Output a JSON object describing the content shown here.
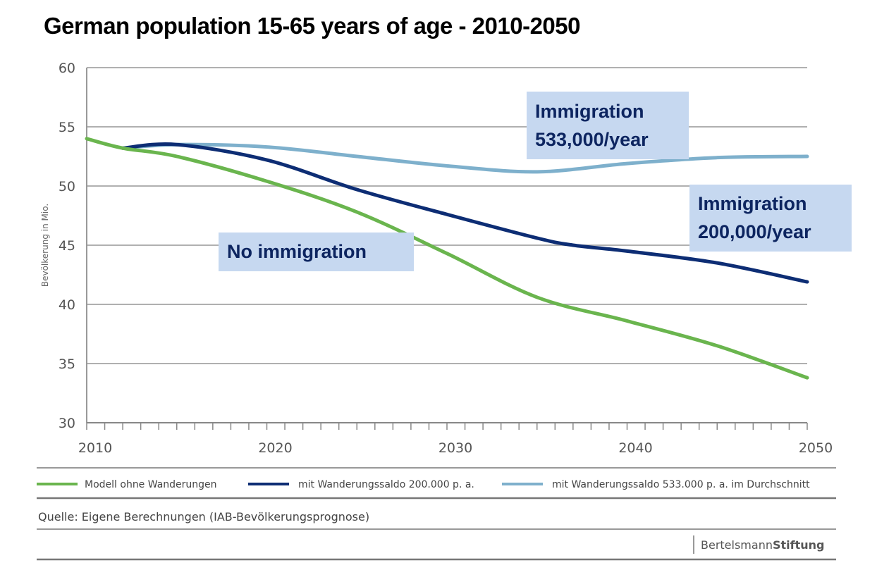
{
  "title": "German population 15-65 years of age - 2010-2050",
  "chart_data": {
    "type": "line",
    "title": "German population 15-65 years of age - 2010-2050",
    "xlabel": "",
    "ylabel": "Bevölkerung in Mio.",
    "xlim": [
      2010,
      2050
    ],
    "ylim": [
      30,
      60
    ],
    "x_ticks": [
      2010,
      2020,
      2030,
      2040,
      2050
    ],
    "y_ticks": [
      30,
      35,
      40,
      45,
      50,
      55,
      60
    ],
    "x_minor_tick_step": 1,
    "grid": "horizontal",
    "legend_position": "bottom",
    "series": [
      {
        "name": "Modell ohne Wanderungen",
        "color": "#6ab54e",
        "x": [
          2010,
          2012,
          2015,
          2020,
          2025,
          2030,
          2035,
          2040,
          2045,
          2050
        ],
        "values": [
          54.0,
          53.2,
          52.5,
          50.4,
          47.8,
          44.3,
          40.6,
          38.6,
          36.5,
          33.8
        ]
      },
      {
        "name": "mit Wanderungssaldo 200.000 p. a.",
        "color": "#0d2d74",
        "x": [
          2012,
          2015,
          2020,
          2025,
          2030,
          2035,
          2037,
          2040,
          2045,
          2050
        ],
        "values": [
          53.2,
          53.5,
          52.2,
          49.7,
          47.6,
          45.6,
          45.0,
          44.5,
          43.5,
          41.9
        ]
      },
      {
        "name": "mit Wanderungssaldo 533.000 p. a. im Durchschnitt",
        "color": "#7eb0cc",
        "x": [
          2012,
          2015,
          2020,
          2025,
          2030,
          2035,
          2040,
          2045,
          2050
        ],
        "values": [
          53.2,
          53.5,
          53.3,
          52.5,
          51.7,
          51.2,
          51.9,
          52.4,
          52.5
        ]
      }
    ],
    "annotations": [
      {
        "text_lines": [
          "Immigration",
          "533,000/year"
        ],
        "series": 2
      },
      {
        "text_lines": [
          "Immigration",
          "200,000/year"
        ],
        "series": 1
      },
      {
        "text_lines": [
          "No immigration"
        ],
        "series": 0
      }
    ]
  },
  "source": "Quelle: Eigene Berechnungen (IAB-Bevölkerungsprognose)",
  "brand": {
    "part1": "Bertelsmann",
    "part2": "Stiftung"
  },
  "colors": {
    "callout_bg": "#c6d8f0",
    "callout_text": "#0d2560",
    "grid": "#b0b0b0"
  }
}
